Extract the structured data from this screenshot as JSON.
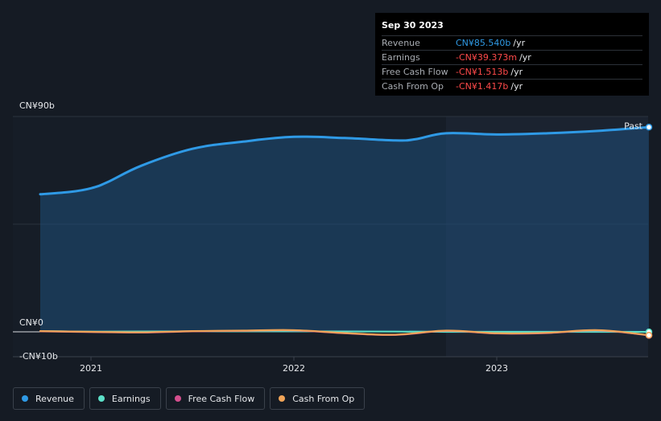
{
  "tooltip": {
    "date": "Sep 30 2023",
    "rows": [
      {
        "label": "Revenue",
        "value": "CN¥85.540b",
        "unit": "/yr",
        "color": "#2f9ae6"
      },
      {
        "label": "Earnings",
        "value": "-CN¥39.373m",
        "unit": "/yr",
        "color": "#ff4a4a"
      },
      {
        "label": "Free Cash Flow",
        "value": "-CN¥1.513b",
        "unit": "/yr",
        "color": "#ff4a4a"
      },
      {
        "label": "Cash From Op",
        "value": "-CN¥1.417b",
        "unit": "/yr",
        "color": "#ff4a4a"
      }
    ]
  },
  "legend": [
    {
      "label": "Revenue",
      "color": "#2f9ae6"
    },
    {
      "label": "Earnings",
      "color": "#5ce0c8"
    },
    {
      "label": "Free Cash Flow",
      "color": "#d44f8e"
    },
    {
      "label": "Cash From Op",
      "color": "#f0a458"
    }
  ],
  "chart_data": {
    "type": "line",
    "y_tick_labels": [
      {
        "label": "CN¥90b",
        "value": 90
      },
      {
        "label": "CN¥0",
        "value": 0
      },
      {
        "label": "-CN¥10b",
        "value": -10
      }
    ],
    "ylim": [
      -10,
      90
    ],
    "x_tick_labels": [
      {
        "label": "2021",
        "value": 2021.0
      },
      {
        "label": "2022",
        "value": 2022.0
      },
      {
        "label": "2023",
        "value": 2023.0
      }
    ],
    "xlim": [
      2020.62,
      2023.75
    ],
    "past_label": "Past",
    "past_start": 2022.75,
    "grid": true,
    "series": [
      {
        "name": "Revenue",
        "color": "#2f9ae6",
        "fill": true,
        "x": [
          2020.75,
          2020.9,
          2021.0,
          2021.08,
          2021.25,
          2021.5,
          2021.75,
          2022.0,
          2022.25,
          2022.5,
          2022.6,
          2022.75,
          2023.0,
          2023.25,
          2023.5,
          2023.75
        ],
        "y": [
          57.5,
          58.5,
          60.0,
          62.5,
          69.5,
          76.5,
          79.5,
          81.5,
          81.0,
          80.0,
          80.5,
          83.0,
          82.5,
          83.0,
          84.0,
          85.54
        ]
      },
      {
        "name": "Earnings",
        "color": "#5ce0c8",
        "fill": false,
        "x": [
          2020.75,
          2021.0,
          2021.5,
          2022.0,
          2022.5,
          2022.75,
          2023.0,
          2023.5,
          2023.75
        ],
        "y": [
          0.3,
          0.1,
          0.2,
          0.2,
          0.1,
          0.0,
          0.0,
          0.0,
          -0.04
        ]
      },
      {
        "name": "Free Cash Flow",
        "color": "#d44f8e",
        "fill": false,
        "x": [
          2020.75,
          2021.0,
          2021.25,
          2021.5,
          2021.75,
          2022.0,
          2022.25,
          2022.5,
          2022.75,
          2023.0,
          2023.25,
          2023.5,
          2023.75
        ],
        "y": [
          0.2,
          -0.1,
          -0.3,
          0.2,
          0.4,
          0.6,
          -0.6,
          -1.3,
          0.4,
          -0.7,
          -0.5,
          0.6,
          -1.51
        ]
      },
      {
        "name": "Cash From Op",
        "color": "#f0a458",
        "fill": false,
        "x": [
          2020.75,
          2021.0,
          2021.25,
          2021.5,
          2021.75,
          2022.0,
          2022.25,
          2022.5,
          2022.75,
          2023.0,
          2023.25,
          2023.5,
          2023.75
        ],
        "y": [
          0.3,
          0.0,
          -0.2,
          0.3,
          0.5,
          0.7,
          -0.5,
          -1.2,
          0.5,
          -0.6,
          -0.4,
          0.7,
          -1.42
        ]
      }
    ]
  }
}
